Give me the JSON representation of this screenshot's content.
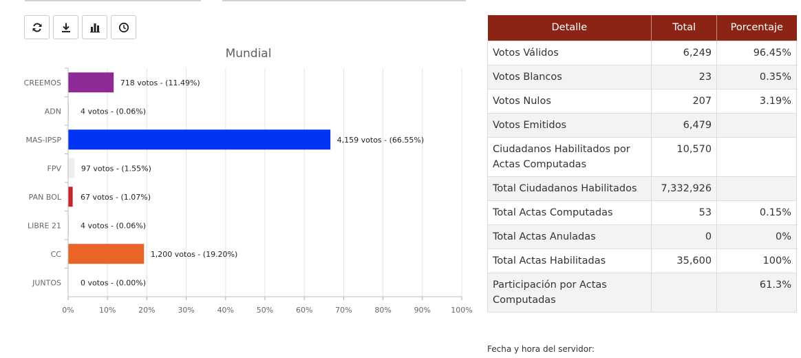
{
  "toolbar": {
    "buttons": [
      {
        "name": "refresh-button",
        "icon": "refresh-icon"
      },
      {
        "name": "download-button",
        "icon": "download-icon"
      },
      {
        "name": "chart-button",
        "icon": "bar-chart-icon"
      },
      {
        "name": "history-button",
        "icon": "clock-icon"
      }
    ]
  },
  "chart_data": {
    "type": "bar",
    "orientation": "horizontal",
    "title": "Mundial",
    "categories": [
      "CREEMOS",
      "ADN",
      "MAS-IPSP",
      "FPV",
      "PAN BOL",
      "LIBRE 21",
      "CC",
      "JUNTOS"
    ],
    "values": [
      11.49,
      0.06,
      66.55,
      1.55,
      1.07,
      0.06,
      19.2,
      0.0
    ],
    "votes": [
      "718",
      "4",
      "4,159",
      "97",
      "67",
      "4",
      "1,200",
      "0"
    ],
    "data_labels": [
      "718 votos - (11.49%)",
      "4 votos - (0.06%)",
      "4,159 votos - (66.55%)",
      "97 votos - (1.55%)",
      "67 votos - (1.07%)",
      "4 votos - (0.06%)",
      "1,200 votos - (19.20%)",
      "0 votos - (0.00%)"
    ],
    "colors": [
      "#8e2a96",
      "#cccccc",
      "#0035f5",
      "#eeeeee",
      "#c2272d",
      "#cccccc",
      "#ea6427",
      "#cccccc"
    ],
    "x_ticks": [
      "0%",
      "10%",
      "20%",
      "30%",
      "40%",
      "50%",
      "60%",
      "70%",
      "80%",
      "90%",
      "100%"
    ],
    "xlim": [
      0,
      100
    ],
    "grid": true
  },
  "table": {
    "headers": [
      "Detalle",
      "Total",
      "Porcentaje"
    ],
    "header_color": "#8b2415",
    "rows": [
      [
        "Votos Válidos",
        "6,249",
        "96.45%"
      ],
      [
        "Votos Blancos",
        "23",
        "0.35%"
      ],
      [
        "Votos Nulos",
        "207",
        "3.19%"
      ],
      [
        "Votos Emitidos",
        "6,479",
        ""
      ],
      [
        "Ciudadanos Habilitados por Actas Computadas",
        "10,570",
        ""
      ],
      [
        "Total Ciudadanos Habilitados",
        "7,332,926",
        ""
      ],
      [
        "Total Actas Computadas",
        "53",
        "0.15%"
      ],
      [
        "Total Actas Anuladas",
        "0",
        "0%"
      ],
      [
        "Total Actas Habilitadas",
        "35,600",
        "100%"
      ],
      [
        "Participación por Actas Computadas",
        "",
        "61.3%"
      ]
    ]
  },
  "footer": {
    "server_time_label": "Fecha y hora del servidor:"
  }
}
